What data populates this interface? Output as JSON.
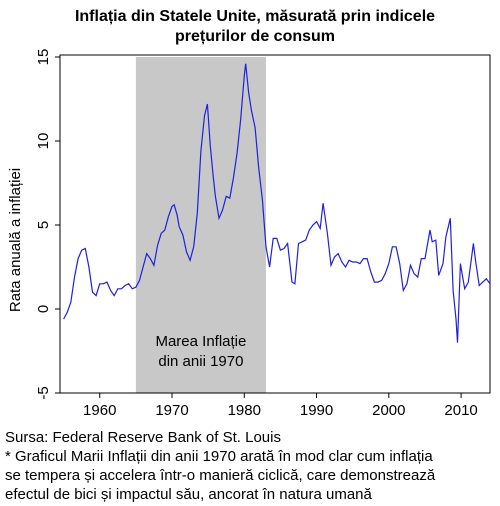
{
  "chart_data": {
    "type": "line",
    "title": [
      "Inflația din Statele Unite, măsurată prin indicele",
      "prețurilor de consum"
    ],
    "y_label": "Rata anuală a inflației",
    "annotation": [
      "Marea Inflație",
      "din anii 1970"
    ],
    "shaded_range": [
      1965,
      1983
    ],
    "color": "#1f1fe0",
    "xlim": [
      1954.5,
      2014
    ],
    "xticks": [
      1960,
      1970,
      1980,
      1990,
      2000,
      2010
    ],
    "ylim": [
      -5,
      15
    ],
    "yticks": [
      -5,
      0,
      5,
      10,
      15
    ],
    "x": [
      1955.0,
      1955.5,
      1956.0,
      1956.5,
      1957.0,
      1957.5,
      1958.0,
      1958.5,
      1959.0,
      1959.5,
      1960.0,
      1960.5,
      1961.0,
      1961.5,
      1962.0,
      1962.5,
      1963.0,
      1963.5,
      1964.0,
      1964.5,
      1965.0,
      1965.5,
      1966.0,
      1966.5,
      1967.0,
      1967.5,
      1968.0,
      1968.5,
      1969.0,
      1969.5,
      1970.0,
      1970.3,
      1970.7,
      1971.0,
      1971.5,
      1972.0,
      1972.5,
      1973.0,
      1973.5,
      1974.0,
      1974.5,
      1974.9,
      1975.3,
      1975.7,
      1976.0,
      1976.5,
      1977.0,
      1977.5,
      1978.0,
      1978.5,
      1979.0,
      1979.5,
      1980.0,
      1980.2,
      1980.6,
      1981.0,
      1981.5,
      1982.0,
      1982.5,
      1983.0,
      1983.5,
      1984.0,
      1984.5,
      1985.0,
      1985.5,
      1986.0,
      1986.6,
      1987.0,
      1987.5,
      1988.0,
      1988.5,
      1989.0,
      1989.5,
      1990.0,
      1990.5,
      1990.9,
      1991.5,
      1992.0,
      1992.5,
      1993.0,
      1993.5,
      1994.0,
      1994.5,
      1995.0,
      1995.5,
      1996.0,
      1996.5,
      1997.0,
      1997.5,
      1998.0,
      1998.5,
      1999.0,
      1999.5,
      2000.0,
      2000.5,
      2001.0,
      2001.5,
      2002.0,
      2002.5,
      2003.0,
      2003.5,
      2004.0,
      2004.5,
      2005.0,
      2005.7,
      2006.0,
      2006.5,
      2006.9,
      2007.5,
      2007.9,
      2008.5,
      2008.9,
      2009.3,
      2009.5,
      2009.9,
      2010.5,
      2011.0,
      2011.7,
      2012.0,
      2012.5,
      2013.0,
      2013.5,
      2014.0
    ],
    "values": [
      -0.6,
      -0.2,
      0.4,
      1.9,
      3.0,
      3.5,
      3.6,
      2.5,
      1.0,
      0.8,
      1.5,
      1.5,
      1.6,
      1.1,
      0.8,
      1.2,
      1.2,
      1.4,
      1.5,
      1.2,
      1.3,
      1.7,
      2.5,
      3.3,
      3.0,
      2.6,
      3.8,
      4.5,
      4.7,
      5.5,
      6.1,
      6.2,
      5.6,
      4.9,
      4.4,
      3.4,
      2.9,
      3.7,
      5.7,
      9.4,
      11.5,
      12.2,
      9.7,
      7.9,
      6.7,
      5.4,
      5.9,
      6.7,
      6.6,
      7.8,
      9.3,
      11.3,
      13.9,
      14.6,
      12.9,
      11.8,
      10.8,
      8.4,
      6.5,
      3.7,
      2.5,
      4.2,
      4.2,
      3.5,
      3.6,
      3.9,
      1.6,
      1.5,
      3.9,
      4.0,
      4.1,
      4.7,
      5.0,
      5.2,
      4.8,
      6.3,
      4.5,
      2.6,
      3.1,
      3.3,
      2.8,
      2.5,
      2.9,
      2.8,
      2.8,
      2.7,
      3.0,
      3.0,
      2.2,
      1.6,
      1.6,
      1.7,
      2.1,
      2.7,
      3.7,
      3.7,
      2.7,
      1.1,
      1.5,
      2.6,
      2.1,
      1.9,
      3.0,
      3.0,
      4.7,
      4.0,
      4.1,
      2.0,
      2.7,
      4.3,
      5.4,
      1.1,
      -0.6,
      -2.0,
      2.7,
      1.2,
      1.6,
      3.9,
      2.9,
      1.4,
      1.6,
      1.8,
      1.5
    ],
    "footnote": [
      "Sursa: Federal Reserve Bank of St. Louis",
      "* Graficul Marii Inflații din anii 1970 arată în mod clar cum inflația",
      "se tempera și accelera într-o manieră ciclică, care demonstrează",
      "efectul de bici și impactul său, ancorat în natura umană"
    ]
  }
}
